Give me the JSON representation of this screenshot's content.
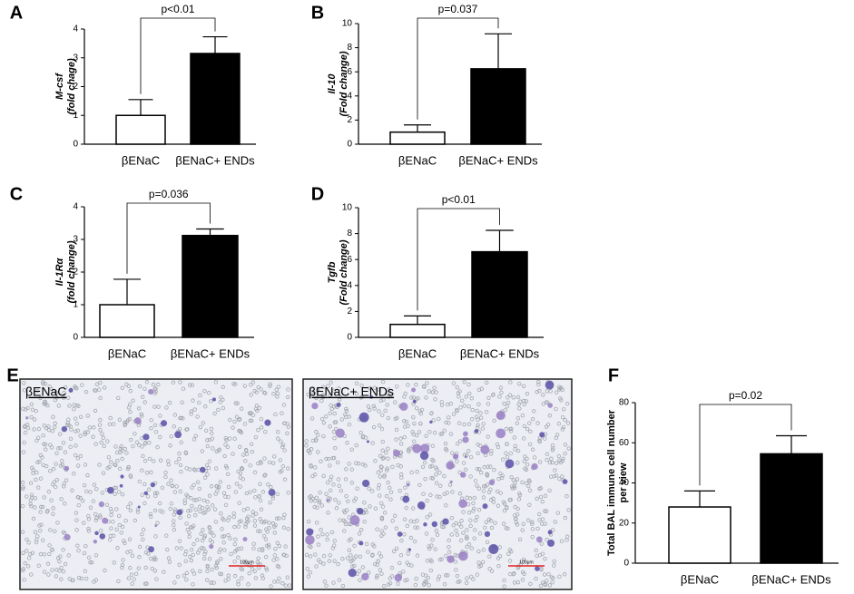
{
  "chart_data": [
    {
      "type": "bar",
      "panel": "A",
      "categories": [
        "βENaC",
        "βENaC+ ENDs"
      ],
      "values": [
        1,
        3.15
      ],
      "errors": [
        0.55,
        0.58
      ],
      "colors": [
        "#ffffff",
        "#000000"
      ],
      "ylabel": [
        "M-csf",
        "(fold chage)"
      ],
      "ylabel_italic": true,
      "ylim": [
        0,
        4
      ],
      "yticks": [
        0,
        1,
        2,
        3,
        4
      ],
      "annotation": "p<0.01"
    },
    {
      "type": "bar",
      "panel": "B",
      "categories": [
        "βENaC",
        "βENaC+ ENDs"
      ],
      "values": [
        1,
        6.25
      ],
      "errors": [
        0.6,
        2.9
      ],
      "colors": [
        "#ffffff",
        "#000000"
      ],
      "ylabel": [
        "Il-10",
        "(Fold change)"
      ],
      "ylabel_italic": true,
      "ylim": [
        0,
        10
      ],
      "yticks": [
        0,
        2,
        4,
        6,
        8,
        10
      ],
      "annotation": "p=0.037"
    },
    {
      "type": "bar",
      "panel": "C",
      "categories": [
        "βENaC",
        "βENaC+ ENDs"
      ],
      "values": [
        1,
        3.12
      ],
      "errors": [
        0.78,
        0.2
      ],
      "colors": [
        "#ffffff",
        "#000000"
      ],
      "ylabel": [
        "Il-1Rα",
        "(fold change)"
      ],
      "ylabel_italic": true,
      "ylim": [
        0,
        4
      ],
      "yticks": [
        0,
        1,
        2,
        3,
        4
      ],
      "annotation": "p=0.036"
    },
    {
      "type": "bar",
      "panel": "D",
      "categories": [
        "βENaC",
        "βENaC+ ENDs"
      ],
      "values": [
        1,
        6.6
      ],
      "errors": [
        0.65,
        1.65
      ],
      "colors": [
        "#ffffff",
        "#000000"
      ],
      "ylabel": [
        "Tgfb",
        "(Fold change)"
      ],
      "ylabel_italic": true,
      "ylim": [
        0,
        10
      ],
      "yticks": [
        0,
        2,
        4,
        6,
        8,
        10
      ],
      "annotation": "p<0.01"
    },
    {
      "type": "bar",
      "panel": "F",
      "categories": [
        "βENaC",
        "βENaC+ ENDs"
      ],
      "values": [
        28,
        54.5
      ],
      "errors": [
        8,
        9
      ],
      "colors": [
        "#ffffff",
        "#000000"
      ],
      "ylabel": [
        "Total BAL immune cell number",
        "per view"
      ],
      "ylabel_italic": false,
      "ylim": [
        0,
        80
      ],
      "yticks": [
        0,
        20,
        40,
        60,
        80
      ],
      "annotation": "p=0.02"
    }
  ],
  "micrographs": {
    "panel": "E",
    "images": [
      {
        "label": "βENaC",
        "scale_bar": "100μm"
      },
      {
        "label": "βENaC+ ENDs",
        "scale_bar": "100μm"
      }
    ]
  }
}
